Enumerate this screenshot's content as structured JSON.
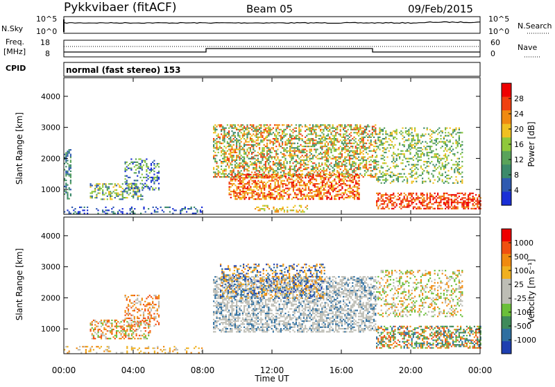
{
  "header": {
    "station": "Pykkvibaer (fitACF)",
    "beam": "Beam 05",
    "date": "09/Feb/2015"
  },
  "nsky_panel": {
    "left_label": "N.Sky",
    "right_label": "N.Search",
    "left_ticks": [
      "10^5",
      "10^0"
    ],
    "right_ticks": [
      "10^5",
      "10^0"
    ]
  },
  "freq_panel": {
    "left_label_1": "Freq.",
    "left_label_2": "[MHz]",
    "right_label": "Nave",
    "left_ticks": [
      "18",
      "8"
    ],
    "right_ticks": [
      "60",
      "0"
    ]
  },
  "cpid": {
    "label": "CPID",
    "text": "normal (fast stereo) 153"
  },
  "colors": {
    "power": [
      "#1a2fd6",
      "#2f5ab0",
      "#3c8a6a",
      "#5aa35a",
      "#8fc83a",
      "#f0c020",
      "#f08a10",
      "#f04010",
      "#ee0000"
    ],
    "velocity": [
      "#1e3fb0",
      "#2f6fa0",
      "#3f8a5a",
      "#6bbf3a",
      "#bdbdb5",
      "#bdbdb5",
      "#f0b020",
      "#f08a10",
      "#f05010",
      "#ee0000"
    ]
  },
  "chart_data": [
    {
      "type": "heatmap",
      "name": "power",
      "ylabel": "Slant Range [km]",
      "ylim": [
        200,
        4600
      ],
      "yticks": [
        "1000",
        "2000",
        "3000",
        "4000"
      ],
      "colorbar_label": "Power [dB]",
      "colorbar_ticks": [
        "4",
        "8",
        "12",
        "16",
        "20",
        "24",
        "28"
      ]
    },
    {
      "type": "heatmap",
      "name": "velocity",
      "ylabel": "Slant Range [km]",
      "ylim": [
        200,
        4600
      ],
      "yticks": [
        "1000",
        "2000",
        "3000",
        "4000"
      ],
      "colorbar_label": "Velocity [m s⁻¹]",
      "colorbar_ticks": [
        "1000",
        "500",
        "100",
        "25",
        "-25",
        "-100",
        "-500",
        "-1000"
      ]
    }
  ],
  "x_axis": {
    "label": "Time UT",
    "ticks": [
      "00:00",
      "04:00",
      "08:00",
      "12:00",
      "16:00",
      "20:00",
      "00:00"
    ]
  }
}
